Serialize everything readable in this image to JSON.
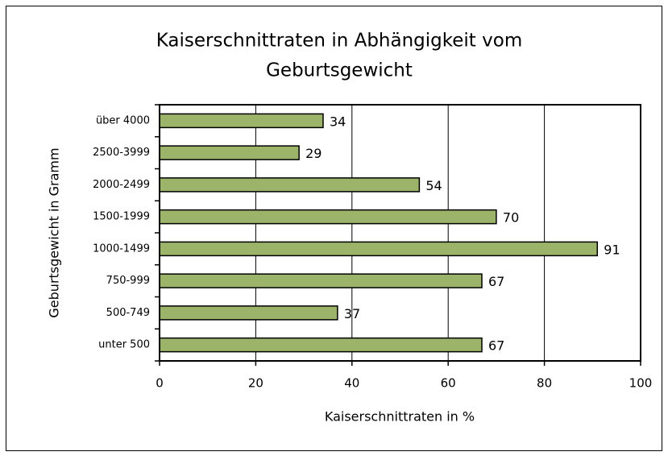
{
  "chart_data": {
    "type": "bar",
    "orientation": "horizontal",
    "title": [
      "Kaiserschnittraten in Abhängigkeit vom",
      "Geburtsgewicht"
    ],
    "x_label": "Kaiserschnittraten in %",
    "y_label": "Geburtsgewicht in Gramm",
    "categories": [
      "über 4000",
      "2500-3999",
      "2000-2499",
      "1500-1999",
      "1000-1499",
      "750-999",
      "500-749",
      "unter 500"
    ],
    "values": [
      34,
      29,
      54,
      70,
      91,
      67,
      37,
      67
    ],
    "color": "#9bb46a",
    "xlim": [
      0,
      100
    ],
    "xticks": [
      0,
      20,
      40,
      60,
      80,
      100
    ],
    "grid": true
  }
}
